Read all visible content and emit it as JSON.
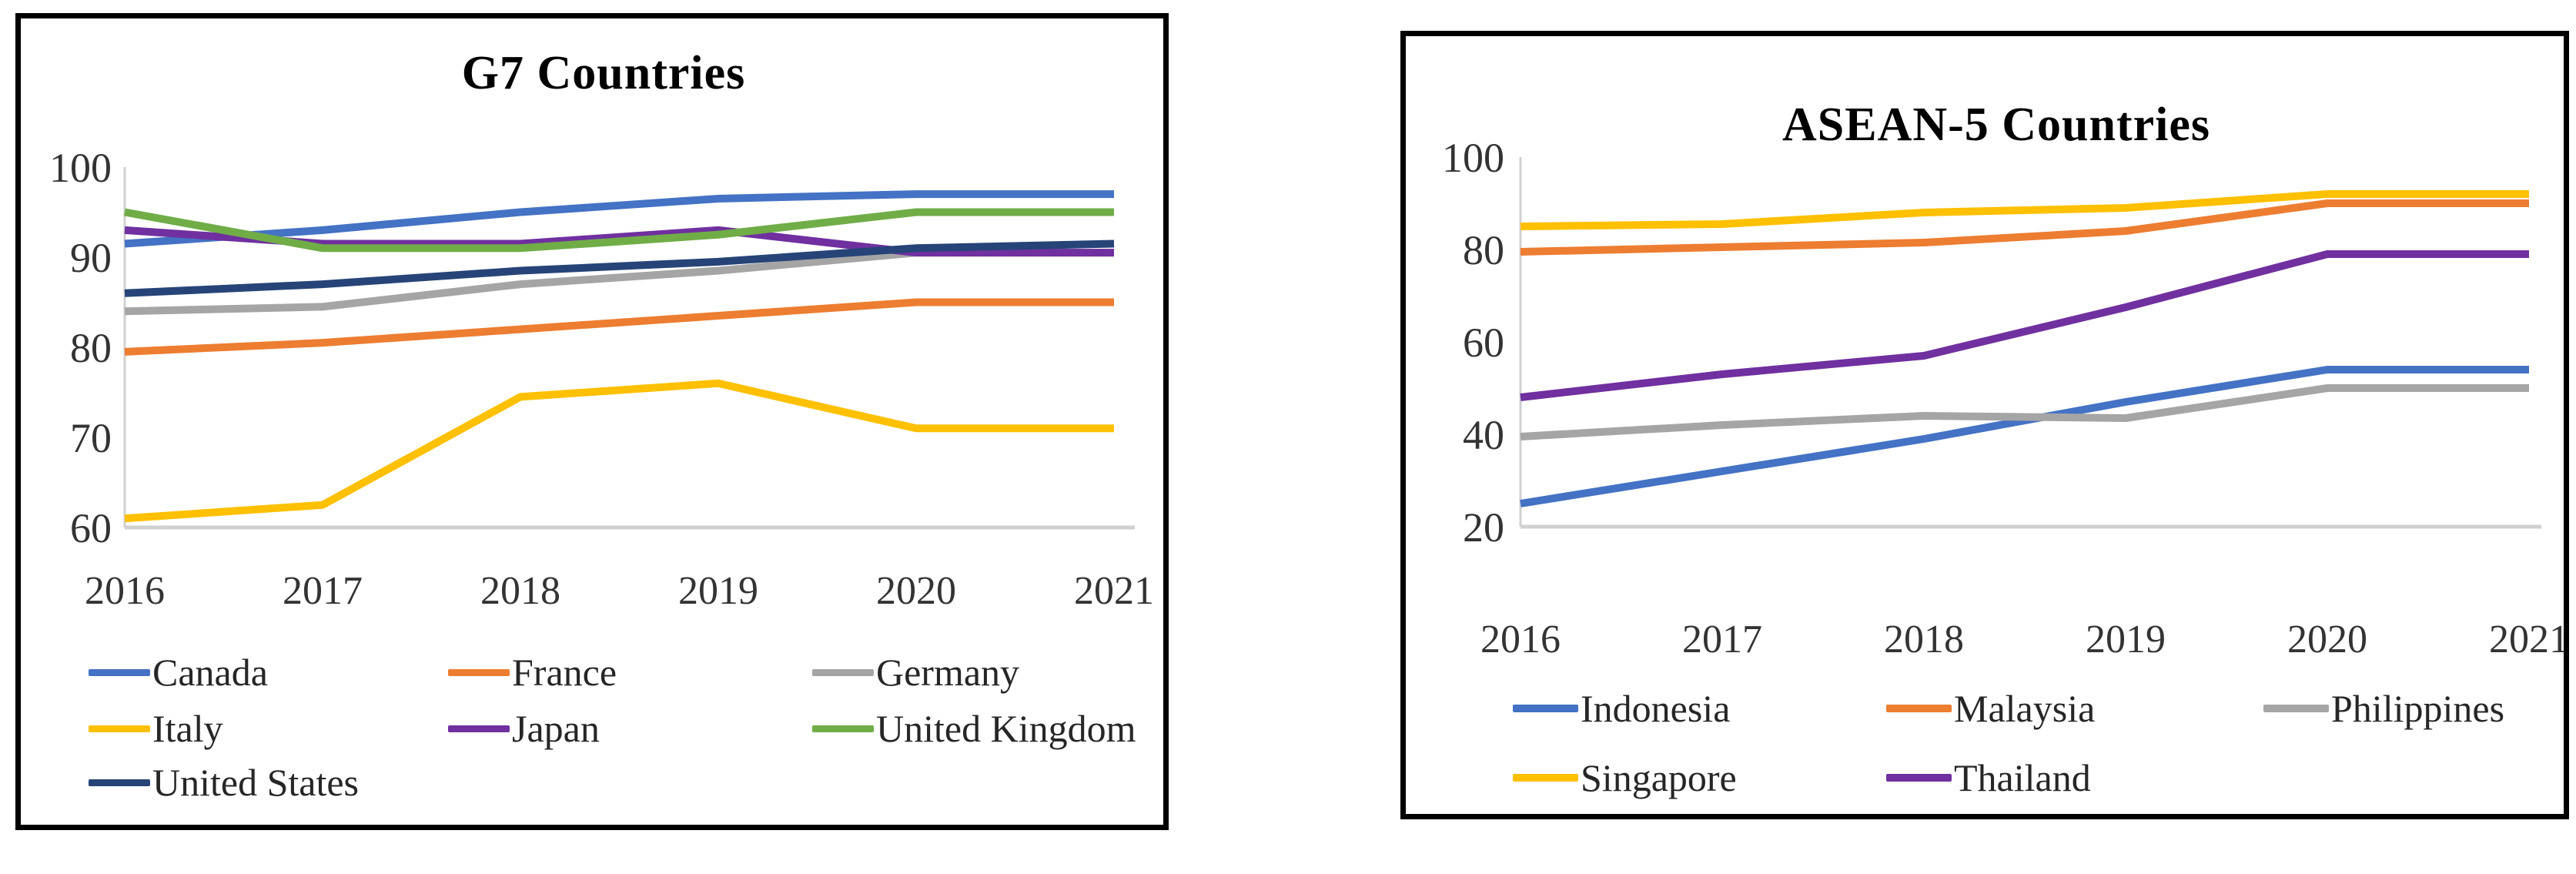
{
  "figure": {
    "description_left_panel_title": "G7 Countries",
    "description_right_panel_title": "ASEAN-5 Countries"
  },
  "chart_data": [
    {
      "type": "line",
      "title": "G7 Countries",
      "x": [
        2016,
        2017,
        2018,
        2019,
        2020,
        2021
      ],
      "x_tick_labels": [
        "2016",
        "2017",
        "2018",
        "2019",
        "2020",
        "2021"
      ],
      "ylim": [
        60,
        100
      ],
      "y_ticks": [
        100,
        90,
        80,
        70,
        60
      ],
      "grid": "bottom-baseline-only",
      "legend_position": "bottom-left",
      "axis_color": "#d0d0d0",
      "tick_label_color": "#333333",
      "series": [
        {
          "name": "Canada",
          "color": "#4472C4",
          "values": [
            91.5,
            93,
            95,
            96.5,
            97,
            97
          ]
        },
        {
          "name": "France",
          "color": "#ED7D31",
          "values": [
            79.5,
            80.5,
            82,
            83.5,
            85,
            85
          ]
        },
        {
          "name": "Germany",
          "color": "#A5A5A5",
          "values": [
            84,
            84.5,
            87,
            88.5,
            90.5,
            90.5
          ]
        },
        {
          "name": "Italy",
          "color": "#FFC000",
          "values": [
            61,
            62.5,
            74.5,
            76,
            71,
            71
          ]
        },
        {
          "name": "Japan",
          "color": "#7030A0",
          "values": [
            93,
            91.5,
            91.5,
            93,
            90.5,
            90.5
          ]
        },
        {
          "name": "United Kingdom",
          "color": "#70AD47",
          "values": [
            95,
            91,
            91,
            92.5,
            95,
            95
          ]
        },
        {
          "name": "United States",
          "color": "#264478",
          "values": [
            86,
            87,
            88.5,
            89.5,
            91,
            91.5
          ]
        }
      ],
      "legend_rows": [
        [
          "Canada",
          "France",
          "Germany"
        ],
        [
          "Italy",
          "Japan",
          "United Kingdom"
        ],
        [
          "United States"
        ]
      ]
    },
    {
      "type": "line",
      "title": "ASEAN-5 Countries",
      "x": [
        2016,
        2017,
        2018,
        2019,
        2020,
        2021
      ],
      "x_tick_labels": [
        "2016",
        "2017",
        "2018",
        "2019",
        "2020",
        "2021"
      ],
      "ylim": [
        20,
        100
      ],
      "y_ticks": [
        100,
        80,
        60,
        40,
        20
      ],
      "grid": "bottom-baseline-only",
      "legend_position": "bottom-center",
      "axis_color": "#d0d0d0",
      "tick_label_color": "#333333",
      "series": [
        {
          "name": "Indonesia",
          "color": "#4472C4",
          "values": [
            25,
            32,
            39,
            47,
            54,
            54
          ]
        },
        {
          "name": "Malaysia",
          "color": "#ED7D31",
          "values": [
            79.5,
            80.5,
            81.5,
            84,
            90,
            90
          ]
        },
        {
          "name": "Philippines",
          "color": "#A5A5A5",
          "values": [
            39.5,
            42,
            44,
            43.5,
            50,
            50
          ]
        },
        {
          "name": "Singapore",
          "color": "#FFC000",
          "values": [
            85,
            85.5,
            88,
            89,
            92,
            92
          ]
        },
        {
          "name": "Thailand",
          "color": "#7030A0",
          "values": [
            48,
            53,
            57,
            67.5,
            79,
            79
          ]
        }
      ],
      "legend_rows": [
        [
          "Indonesia",
          "Malaysia",
          "Philippines"
        ],
        [
          "Singapore",
          "Thailand"
        ]
      ]
    }
  ]
}
